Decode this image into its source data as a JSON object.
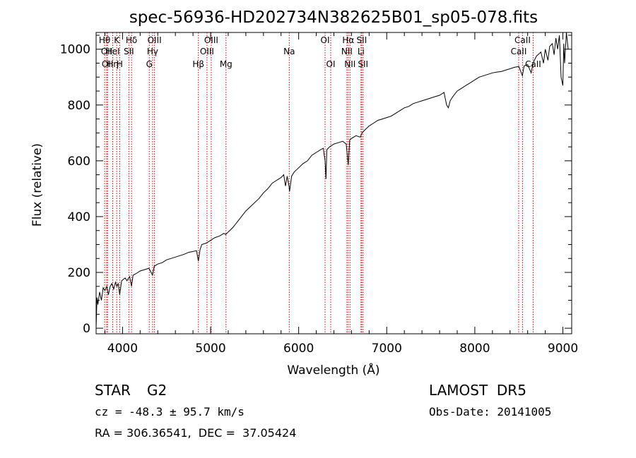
{
  "chart_data": {
    "type": "line",
    "title": "spec-56936-HD202734N382625B01_sp05-078.fits",
    "xlabel": "Wavelength (Å)",
    "ylabel": "Flux (relative)",
    "xlim": [
      3700,
      9100
    ],
    "ylim": [
      -20,
      1060
    ],
    "xticks": [
      4000,
      5000,
      6000,
      7000,
      8000,
      9000
    ],
    "yticks": [
      0,
      200,
      400,
      600,
      800,
      1000
    ],
    "grid": false,
    "series": [
      {
        "points": [
          [
            3700,
            0
          ],
          [
            3710,
            110
          ],
          [
            3720,
            85
          ],
          [
            3740,
            130
          ],
          [
            3760,
            100
          ],
          [
            3780,
            145
          ],
          [
            3800,
            135
          ],
          [
            3820,
            150
          ],
          [
            3840,
            120
          ],
          [
            3860,
            150
          ],
          [
            3880,
            160
          ],
          [
            3900,
            140
          ],
          [
            3920,
            165
          ],
          [
            3935,
            150
          ],
          [
            3950,
            160
          ],
          [
            3968,
            120
          ],
          [
            3990,
            170
          ],
          [
            4010,
            175
          ],
          [
            4030,
            180
          ],
          [
            4050,
            170
          ],
          [
            4080,
            185
          ],
          [
            4102,
            150
          ],
          [
            4120,
            190
          ],
          [
            4150,
            195
          ],
          [
            4200,
            205
          ],
          [
            4250,
            210
          ],
          [
            4300,
            215
          ],
          [
            4340,
            190
          ],
          [
            4360,
            222
          ],
          [
            4400,
            230
          ],
          [
            4450,
            235
          ],
          [
            4500,
            245
          ],
          [
            4550,
            250
          ],
          [
            4600,
            255
          ],
          [
            4650,
            260
          ],
          [
            4700,
            265
          ],
          [
            4750,
            272
          ],
          [
            4800,
            275
          ],
          [
            4840,
            278
          ],
          [
            4861,
            240
          ],
          [
            4880,
            282
          ],
          [
            4900,
            300
          ],
          [
            4950,
            305
          ],
          [
            5000,
            315
          ],
          [
            5050,
            325
          ],
          [
            5100,
            330
          ],
          [
            5150,
            340
          ],
          [
            5172,
            336
          ],
          [
            5200,
            345
          ],
          [
            5250,
            360
          ],
          [
            5300,
            380
          ],
          [
            5350,
            400
          ],
          [
            5400,
            420
          ],
          [
            5450,
            435
          ],
          [
            5500,
            450
          ],
          [
            5550,
            465
          ],
          [
            5600,
            485
          ],
          [
            5650,
            500
          ],
          [
            5700,
            520
          ],
          [
            5750,
            530
          ],
          [
            5800,
            540
          ],
          [
            5830,
            550
          ],
          [
            5850,
            510
          ],
          [
            5870,
            545
          ],
          [
            5890,
            510
          ],
          [
            5896,
            490
          ],
          [
            5920,
            545
          ],
          [
            5950,
            560
          ],
          [
            6000,
            575
          ],
          [
            6050,
            590
          ],
          [
            6100,
            600
          ],
          [
            6150,
            620
          ],
          [
            6200,
            630
          ],
          [
            6250,
            640
          ],
          [
            6280,
            645
          ],
          [
            6300,
            600
          ],
          [
            6310,
            535
          ],
          [
            6320,
            640
          ],
          [
            6350,
            650
          ],
          [
            6400,
            660
          ],
          [
            6450,
            665
          ],
          [
            6500,
            670
          ],
          [
            6540,
            660
          ],
          [
            6563,
            585
          ],
          [
            6580,
            675
          ],
          [
            6600,
            680
          ],
          [
            6650,
            690
          ],
          [
            6700,
            685
          ],
          [
            6720,
            700
          ],
          [
            6750,
            710
          ],
          [
            6800,
            725
          ],
          [
            6850,
            735
          ],
          [
            6900,
            745
          ],
          [
            6950,
            750
          ],
          [
            7000,
            755
          ],
          [
            7050,
            760
          ],
          [
            7100,
            770
          ],
          [
            7150,
            780
          ],
          [
            7200,
            790
          ],
          [
            7250,
            795
          ],
          [
            7300,
            805
          ],
          [
            7350,
            810
          ],
          [
            7400,
            815
          ],
          [
            7450,
            820
          ],
          [
            7500,
            825
          ],
          [
            7550,
            830
          ],
          [
            7600,
            835
          ],
          [
            7650,
            845
          ],
          [
            7680,
            800
          ],
          [
            7700,
            790
          ],
          [
            7720,
            815
          ],
          [
            7750,
            830
          ],
          [
            7800,
            850
          ],
          [
            7850,
            860
          ],
          [
            7900,
            870
          ],
          [
            7950,
            880
          ],
          [
            8000,
            890
          ],
          [
            8050,
            900
          ],
          [
            8100,
            905
          ],
          [
            8150,
            910
          ],
          [
            8200,
            915
          ],
          [
            8250,
            918
          ],
          [
            8300,
            920
          ],
          [
            8350,
            925
          ],
          [
            8400,
            930
          ],
          [
            8450,
            935
          ],
          [
            8500,
            938
          ],
          [
            8540,
            905
          ],
          [
            8560,
            940
          ],
          [
            8600,
            945
          ],
          [
            8640,
            915
          ],
          [
            8660,
            950
          ],
          [
            8700,
            975
          ],
          [
            8750,
            990
          ],
          [
            8780,
            950
          ],
          [
            8800,
            1000
          ],
          [
            8830,
            960
          ],
          [
            8850,
            1010
          ],
          [
            8880,
            1020
          ],
          [
            8900,
            980
          ],
          [
            8920,
            1040
          ],
          [
            8940,
            1000
          ],
          [
            8960,
            1050
          ],
          [
            8980,
            900
          ],
          [
            9000,
            870
          ],
          [
            9010,
            1020
          ],
          [
            9020,
            950
          ],
          [
            9040,
            1060
          ],
          [
            9060,
            1000
          ]
        ]
      }
    ],
    "line_markers": [
      {
        "wl": 3797,
        "label": "Hθ",
        "row": 0
      },
      {
        "wl": 3820,
        "label": "OII",
        "row": 1
      },
      {
        "wl": 3830,
        "label": "OII",
        "row": 2
      },
      {
        "wl": 3889,
        "label": "HeI",
        "row": 1
      },
      {
        "wl": 3889,
        "label": "Hη",
        "row": 2
      },
      {
        "wl": 3934,
        "label": "K",
        "row": 0
      },
      {
        "wl": 3968,
        "label": "H",
        "row": 2
      },
      {
        "wl": 4072,
        "label": "SII",
        "row": 1
      },
      {
        "wl": 4102,
        "label": "Hδ",
        "row": 0
      },
      {
        "wl": 4304,
        "label": "G",
        "row": 2
      },
      {
        "wl": 4341,
        "label": "Hγ",
        "row": 1
      },
      {
        "wl": 4363,
        "label": "OIII",
        "row": 0
      },
      {
        "wl": 4861,
        "label": "Hβ",
        "row": 2
      },
      {
        "wl": 4959,
        "label": "OIII",
        "row": 1
      },
      {
        "wl": 5007,
        "label": "OIII",
        "row": 0
      },
      {
        "wl": 5175,
        "label": "Mg",
        "row": 2
      },
      {
        "wl": 5893,
        "label": "Na",
        "row": 1
      },
      {
        "wl": 6300,
        "label": "OI",
        "row": 0
      },
      {
        "wl": 6364,
        "label": "OI",
        "row": 2
      },
      {
        "wl": 6548,
        "label": "NII",
        "row": 1
      },
      {
        "wl": 6563,
        "label": "Hα",
        "row": 0
      },
      {
        "wl": 6583,
        "label": "NII",
        "row": 2
      },
      {
        "wl": 6708,
        "label": "Li",
        "row": 1
      },
      {
        "wl": 6716,
        "label": "SII",
        "row": 0
      },
      {
        "wl": 6731,
        "label": "SII",
        "row": 2
      },
      {
        "wl": 8498,
        "label": "CaII",
        "row": 1
      },
      {
        "wl": 8542,
        "label": "CaII",
        "row": 0
      },
      {
        "wl": 8662,
        "label": "CaII",
        "row": 2
      }
    ],
    "colors": {
      "spectrum": "#000000",
      "markers": "#cc0000",
      "axes": "#000000"
    }
  },
  "info": {
    "object_class": "STAR",
    "subclass": "G2",
    "survey": "LAMOST  DR5",
    "cz_text": "cz = -48.3 ± 95.7 km/s",
    "obs_date": "Obs-Date: 20141005",
    "coords": "RA = 306.36541,  DEC =  37.05424"
  }
}
